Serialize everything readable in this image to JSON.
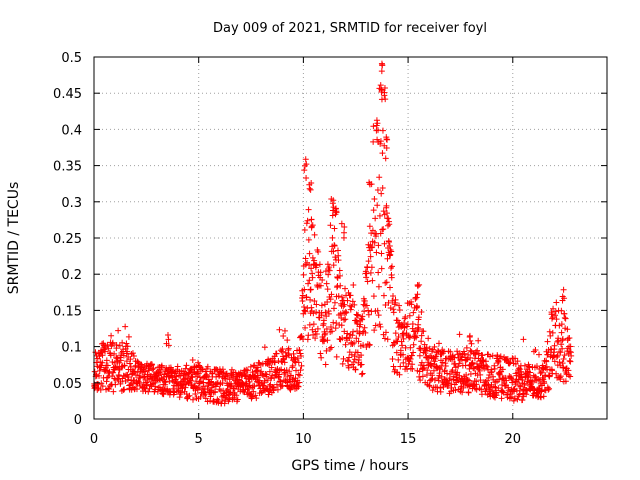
{
  "chart_data": {
    "type": "scatter",
    "title": "Day 009 of 2021, SRMTID for receiver foyl",
    "xlabel": "GPS time / hours",
    "ylabel": "SRMTID / TECUs",
    "xlim": [
      0,
      24.5
    ],
    "ylim": [
      0,
      0.5
    ],
    "grid": true,
    "marker": "+",
    "colors": {
      "points": "#ff0000",
      "axes": "#000000",
      "grid": "#a0a0a0"
    },
    "x_ticks": [
      {
        "value": 0,
        "label": "0"
      },
      {
        "value": 5,
        "label": "5"
      },
      {
        "value": 10,
        "label": "10"
      },
      {
        "value": 15,
        "label": "15"
      },
      {
        "value": 20,
        "label": "20"
      }
    ],
    "y_ticks": [
      {
        "value": 0,
        "label": "0"
      },
      {
        "value": 0.05,
        "label": "0.05"
      },
      {
        "value": 0.1,
        "label": "0.1"
      },
      {
        "value": 0.15,
        "label": "0.15"
      },
      {
        "value": 0.2,
        "label": "0.2"
      },
      {
        "value": 0.25,
        "label": "0.25"
      },
      {
        "value": 0.3,
        "label": "0.3"
      },
      {
        "value": 0.35,
        "label": "0.35"
      },
      {
        "value": 0.4,
        "label": "0.4"
      },
      {
        "value": 0.45,
        "label": "0.45"
      },
      {
        "value": 0.5,
        "label": "0.5"
      }
    ],
    "series": [
      {
        "name": "SRMTID",
        "envelope_description": "dense cloud of samples; values read as [hour, baseline, spread]",
        "envelope": [
          [
            0.0,
            0.065,
            0.025
          ],
          [
            0.5,
            0.075,
            0.035
          ],
          [
            1.0,
            0.07,
            0.035
          ],
          [
            1.5,
            0.08,
            0.04
          ],
          [
            2.0,
            0.06,
            0.02
          ],
          [
            3.0,
            0.055,
            0.02
          ],
          [
            4.0,
            0.05,
            0.02
          ],
          [
            5.0,
            0.05,
            0.025
          ],
          [
            6.0,
            0.045,
            0.025
          ],
          [
            7.0,
            0.045,
            0.02
          ],
          [
            8.0,
            0.055,
            0.025
          ],
          [
            9.0,
            0.07,
            0.03
          ],
          [
            9.8,
            0.07,
            0.03
          ],
          [
            10.1,
            0.21,
            0.1
          ],
          [
            10.5,
            0.18,
            0.08
          ],
          [
            11.0,
            0.13,
            0.06
          ],
          [
            11.4,
            0.2,
            0.1
          ],
          [
            11.8,
            0.13,
            0.06
          ],
          [
            12.3,
            0.12,
            0.05
          ],
          [
            12.8,
            0.1,
            0.04
          ],
          [
            13.2,
            0.2,
            0.1
          ],
          [
            13.6,
            0.3,
            0.17
          ],
          [
            13.9,
            0.25,
            0.14
          ],
          [
            14.3,
            0.12,
            0.06
          ],
          [
            14.8,
            0.1,
            0.04
          ],
          [
            15.3,
            0.13,
            0.06
          ],
          [
            15.8,
            0.07,
            0.03
          ],
          [
            17.0,
            0.065,
            0.03
          ],
          [
            18.0,
            0.065,
            0.03
          ],
          [
            19.0,
            0.06,
            0.03
          ],
          [
            20.0,
            0.055,
            0.03
          ],
          [
            21.0,
            0.05,
            0.025
          ],
          [
            21.5,
            0.055,
            0.025
          ],
          [
            21.9,
            0.1,
            0.05
          ],
          [
            22.5,
            0.1,
            0.05
          ],
          [
            22.8,
            0.075,
            0.02
          ]
        ],
        "peaks": [
          [
            10.1,
            0.36
          ],
          [
            10.3,
            0.33
          ],
          [
            10.4,
            0.28
          ],
          [
            11.4,
            0.31
          ],
          [
            11.6,
            0.3
          ],
          [
            11.9,
            0.27
          ],
          [
            13.2,
            0.33
          ],
          [
            13.5,
            0.4
          ],
          [
            13.7,
            0.47
          ],
          [
            13.8,
            0.5
          ],
          [
            13.9,
            0.46
          ],
          [
            14.0,
            0.39
          ],
          [
            14.1,
            0.25
          ],
          [
            15.5,
            0.19
          ],
          [
            22.4,
            0.18
          ],
          [
            21.9,
            0.15
          ],
          [
            18.0,
            0.12
          ],
          [
            3.5,
            0.12
          ]
        ]
      }
    ]
  }
}
